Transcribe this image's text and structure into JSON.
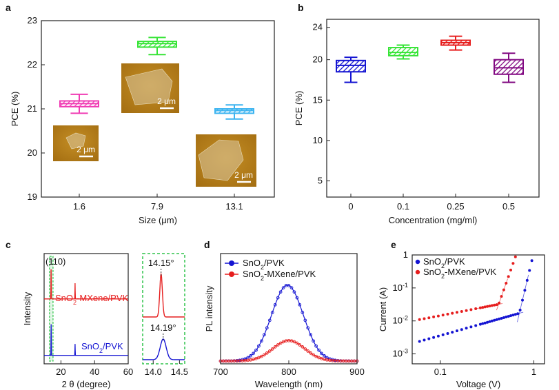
{
  "panels": {
    "a": "a",
    "b": "b",
    "c": "c",
    "d": "d",
    "e": "e"
  },
  "colors": {
    "pink": "#f03cb4",
    "green": "#36e436",
    "cyan": "#3cb4f0",
    "blue": "#1414d2",
    "red": "#e61e1e",
    "purple": "#820a82",
    "afm_bg": "#b5801a",
    "afm_flake": "#d8c7a0",
    "green_box": "#2fc44a"
  },
  "chart_data": [
    {
      "id": "a",
      "type": "box",
      "title": "",
      "xlabel": "Size (μm)",
      "ylabel": "PCE (%)",
      "categories": [
        "1.6",
        "7.9",
        "13.1"
      ],
      "ylim": [
        19,
        23
      ],
      "yticks": [
        "19",
        "20",
        "21",
        "22",
        "23"
      ],
      "boxes": [
        {
          "category": "1.6",
          "min": 20.9,
          "q1": 21.05,
          "median": 21.12,
          "q3": 21.18,
          "max": 21.33,
          "color_key": "pink"
        },
        {
          "category": "7.9",
          "min": 22.23,
          "q1": 22.4,
          "median": 22.48,
          "q3": 22.53,
          "max": 22.62,
          "color_key": "green"
        },
        {
          "category": "13.1",
          "min": 20.77,
          "q1": 20.9,
          "median": 20.96,
          "q3": 21.0,
          "max": 21.09,
          "color_key": "cyan"
        }
      ],
      "insets": [
        {
          "name": "afm-inset-small",
          "scale_label": "2 μm"
        },
        {
          "name": "afm-inset-medium",
          "scale_label": "2 μm"
        },
        {
          "name": "afm-inset-large",
          "scale_label": "2 μm"
        }
      ]
    },
    {
      "id": "b",
      "type": "box",
      "xlabel": "Concentration (mg/ml)",
      "ylabel": "PCE (%)",
      "categories": [
        "0",
        "0.1",
        "0.25",
        "0.5"
      ],
      "ylim": [
        3,
        25
      ],
      "yticks": [
        "5",
        "10",
        "15",
        "20",
        "24"
      ],
      "ytick_values": [
        5,
        10,
        15,
        20,
        24
      ],
      "boxes": [
        {
          "category": "0",
          "min": 17.2,
          "q1": 18.5,
          "median": 19.3,
          "q3": 19.9,
          "max": 20.3,
          "color_key": "blue"
        },
        {
          "category": "0.1",
          "min": 20.1,
          "q1": 20.5,
          "median": 20.9,
          "q3": 21.5,
          "max": 21.8,
          "color_key": "green"
        },
        {
          "category": "0.25",
          "min": 21.2,
          "q1": 21.8,
          "median": 22.1,
          "q3": 22.4,
          "max": 22.9,
          "color_key": "red"
        },
        {
          "category": "0.5",
          "min": 17.2,
          "q1": 18.2,
          "median": 19.0,
          "q3": 20.0,
          "max": 20.8,
          "color_key": "purple"
        }
      ]
    },
    {
      "id": "c",
      "type": "line",
      "title": "",
      "xlabel": "2 θ (degree)",
      "ylabel": "Intensity",
      "main": {
        "xlim": [
          10,
          60
        ],
        "xticks": [
          "20",
          "40",
          "60"
        ],
        "peak_label": "(110)",
        "series": [
          {
            "name": "SnO₂-MXene/PVK",
            "label_main": "SnO",
            "label_sub": "2",
            "label_rest": "-MXene/PVK",
            "color_key": "red",
            "baseline": 0.62,
            "peaks": [
              {
                "x": 14.15,
                "h": 0.33
              },
              {
                "x": 28.4,
                "h": 0.15
              }
            ]
          },
          {
            "name": "SnO₂/PVK",
            "label_main": "SnO",
            "label_sub": "2",
            "label_rest": "/PVK",
            "color_key": "blue",
            "baseline": 0.08,
            "peaks": [
              {
                "x": 14.19,
                "h": 0.3
              },
              {
                "x": 28.4,
                "h": 0.11
              }
            ]
          }
        ]
      },
      "zoom": {
        "xlim": [
          13.8,
          14.6
        ],
        "xticks": [
          "14.0",
          "14.5"
        ],
        "series": [
          {
            "peak": 14.15,
            "label": "14.15°",
            "color_key": "red",
            "width": 0.035
          },
          {
            "peak": 14.19,
            "label": "14.19°",
            "color_key": "blue",
            "width": 0.08
          }
        ]
      }
    },
    {
      "id": "d",
      "type": "line",
      "xlabel": "Wavelength (nm)",
      "ylabel": "PL intensity",
      "xlim": [
        700,
        900
      ],
      "xticks": [
        "700",
        "800",
        "900"
      ],
      "legend": "top-left",
      "series": [
        {
          "name": "SnO₂/PVK",
          "label_main": "SnO",
          "label_sub": "2",
          "label_rest": "/PVK",
          "color_key": "blue",
          "center": 798,
          "sigma": 33,
          "amplitude": 1.0
        },
        {
          "name": "SnO₂-MXene/PVK",
          "label_main": "SnO",
          "label_sub": "2",
          "label_rest": "-MXene/PVK",
          "color_key": "red",
          "center": 800,
          "sigma": 33,
          "amplitude": 0.27
        }
      ]
    },
    {
      "id": "e",
      "type": "scatter",
      "xlabel": "Voltage (V)",
      "ylabel": "Current (A)",
      "xscale": "log",
      "yscale": "log",
      "xlim": [
        0.05,
        1.3
      ],
      "ylim": [
        0.0005,
        1
      ],
      "xticks": [
        {
          "value": 0.1,
          "label": "0.1"
        },
        {
          "value": 1,
          "label": "1"
        }
      ],
      "yticks": [
        {
          "value": 1,
          "base": "1",
          "exp": ""
        },
        {
          "value": 0.1,
          "base": "10",
          "exp": "-1"
        },
        {
          "value": 0.01,
          "base": "10",
          "exp": "-2"
        },
        {
          "value": 0.001,
          "base": "10",
          "exp": "-3"
        }
      ],
      "legend": "top-left",
      "series": [
        {
          "name": "SnO₂/PVK",
          "label_main": "SnO",
          "label_sub": "2",
          "label_rest": "/PVK",
          "color_key": "blue",
          "ohmic": {
            "i0": 0.0036,
            "slope": 0.8
          },
          "tfl": {
            "vk": 0.7,
            "slope": 12
          }
        },
        {
          "name": "SnO₂-MXene/PVK",
          "label_main": "SnO",
          "label_sub": "2",
          "label_rest": "-MXene/PVK",
          "color_key": "red",
          "ohmic": {
            "i0": 0.0145,
            "slope": 0.55
          },
          "tfl": {
            "vk": 0.42,
            "slope": 8
          }
        }
      ]
    }
  ]
}
